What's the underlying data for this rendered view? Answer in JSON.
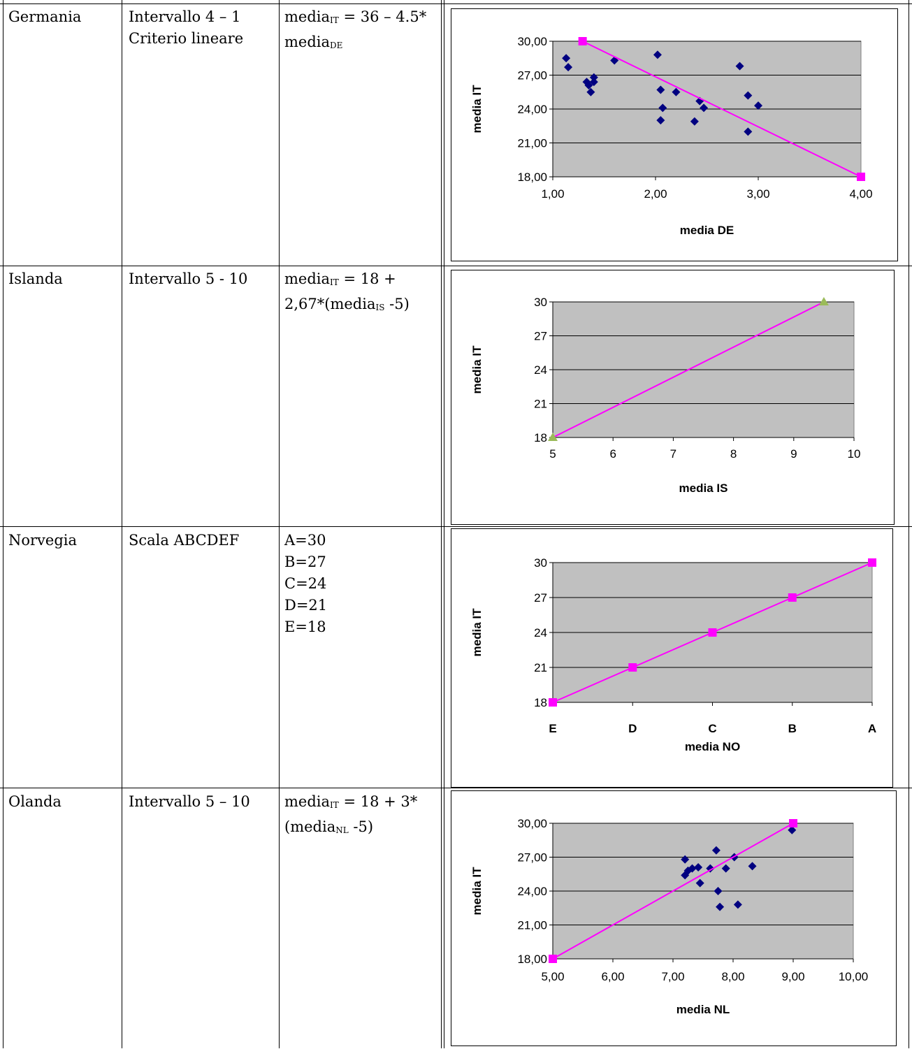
{
  "rows": [
    {
      "country": "Germania",
      "method": [
        "Intervallo 4 – 1",
        "Criterio lineare"
      ],
      "formula": {
        "l1_pre": "media",
        "l1_sub": "IT",
        "l1_post": " = 36 – 4.5*",
        "l2_pre": "media",
        "l2_sub": "DE",
        "l2_post": ""
      }
    },
    {
      "country": "Islanda",
      "method": [
        "Intervallo 5 - 10"
      ],
      "formula": {
        "l1_pre": "media",
        "l1_sub": "IT",
        "l1_post": " = 18 +",
        "l2_pre": "2,67*(media",
        "l2_sub": "IS",
        "l2_post": " -5)"
      }
    },
    {
      "country": "Norvegia",
      "method": [
        "Scala ABCDEF"
      ],
      "formula_lines": [
        "A=30",
        "B=27",
        "C=24",
        "D=21",
        "E=18"
      ]
    },
    {
      "country": "Olanda",
      "method": [
        "Intervallo 5 – 10"
      ],
      "formula": {
        "l1_pre": "media",
        "l1_sub": "IT",
        "l1_post": " = 18 + 3*",
        "l2_pre": "(media",
        "l2_sub": "NL",
        "l2_post": " -5)"
      }
    }
  ],
  "chart_data": [
    {
      "type": "scatter",
      "xlabel": "media DE",
      "ylabel": "media IT",
      "xlim": [
        1,
        4
      ],
      "ylim": [
        18,
        30
      ],
      "xticks": [
        "1,00",
        "2,00",
        "3,00",
        "4,00"
      ],
      "yticks": [
        "18,00",
        "21,00",
        "24,00",
        "27,00",
        "30,00"
      ],
      "plot_bg": "#c0c0c0",
      "series": [
        {
          "marker": "diamond",
          "color": "#000080",
          "points": [
            [
              1.13,
              28.5
            ],
            [
              1.15,
              27.7
            ],
            [
              1.33,
              26.4
            ],
            [
              1.35,
              26.1
            ],
            [
              1.37,
              25.5
            ],
            [
              1.4,
              26.8
            ],
            [
              1.4,
              26.4
            ],
            [
              1.6,
              28.3
            ],
            [
              2.02,
              28.8
            ],
            [
              2.05,
              25.7
            ],
            [
              2.05,
              23.0
            ],
            [
              2.07,
              24.1
            ],
            [
              2.2,
              25.5
            ],
            [
              2.38,
              22.9
            ],
            [
              2.43,
              24.7
            ],
            [
              2.47,
              24.1
            ],
            [
              2.82,
              27.8
            ],
            [
              2.9,
              25.2
            ],
            [
              2.9,
              22.0
            ],
            [
              3.0,
              24.3
            ]
          ]
        },
        {
          "marker": "square",
          "color": "#ff00ff",
          "line": true,
          "points": [
            [
              1.29,
              30
            ],
            [
              4.0,
              18
            ]
          ]
        }
      ]
    },
    {
      "type": "line",
      "xlabel": "media IS",
      "ylabel": "media IT",
      "xlim": [
        5,
        10
      ],
      "ylim": [
        18,
        30
      ],
      "xticks": [
        "5",
        "6",
        "7",
        "8",
        "9",
        "10"
      ],
      "yticks": [
        "18",
        "21",
        "24",
        "27",
        "30"
      ],
      "plot_bg": "#c0c0c0",
      "series": [
        {
          "marker": "triangle",
          "color": "#9bbb59",
          "line": true,
          "line_color": "#ff00ff",
          "points": [
            [
              5,
              18
            ],
            [
              9.5,
              30
            ]
          ]
        }
      ]
    },
    {
      "type": "line",
      "xlabel": "media NO",
      "ylabel": "media IT",
      "categories": [
        "E",
        "D",
        "C",
        "B",
        "A"
      ],
      "ylim": [
        18,
        30
      ],
      "yticks": [
        "18",
        "21",
        "24",
        "27",
        "30"
      ],
      "plot_bg": "#c0c0c0",
      "series": [
        {
          "marker": "square",
          "color": "#ff00ff",
          "line": true,
          "values": [
            18,
            21,
            24,
            27,
            30
          ]
        }
      ]
    },
    {
      "type": "scatter",
      "xlabel": "media NL",
      "ylabel": "media IT",
      "xlim": [
        5,
        10
      ],
      "ylim": [
        18,
        30
      ],
      "xticks": [
        "5,00",
        "6,00",
        "7,00",
        "8,00",
        "9,00",
        "10,00"
      ],
      "yticks": [
        "18,00",
        "21,00",
        "24,00",
        "27,00",
        "30,00"
      ],
      "plot_bg": "#c0c0c0",
      "series": [
        {
          "marker": "diamond",
          "color": "#000080",
          "points": [
            [
              7.2,
              26.8
            ],
            [
              7.2,
              25.4
            ],
            [
              7.25,
              25.8
            ],
            [
              7.32,
              26.0
            ],
            [
              7.42,
              26.1
            ],
            [
              7.45,
              24.7
            ],
            [
              7.62,
              26.0
            ],
            [
              7.72,
              27.6
            ],
            [
              7.75,
              24.0
            ],
            [
              7.78,
              22.6
            ],
            [
              7.88,
              26.0
            ],
            [
              8.02,
              27.0
            ],
            [
              8.08,
              22.8
            ],
            [
              8.32,
              26.2
            ],
            [
              8.98,
              29.4
            ]
          ]
        },
        {
          "marker": "square",
          "color": "#ff00ff",
          "line": true,
          "points": [
            [
              5,
              18
            ],
            [
              9,
              30
            ]
          ]
        }
      ]
    }
  ]
}
